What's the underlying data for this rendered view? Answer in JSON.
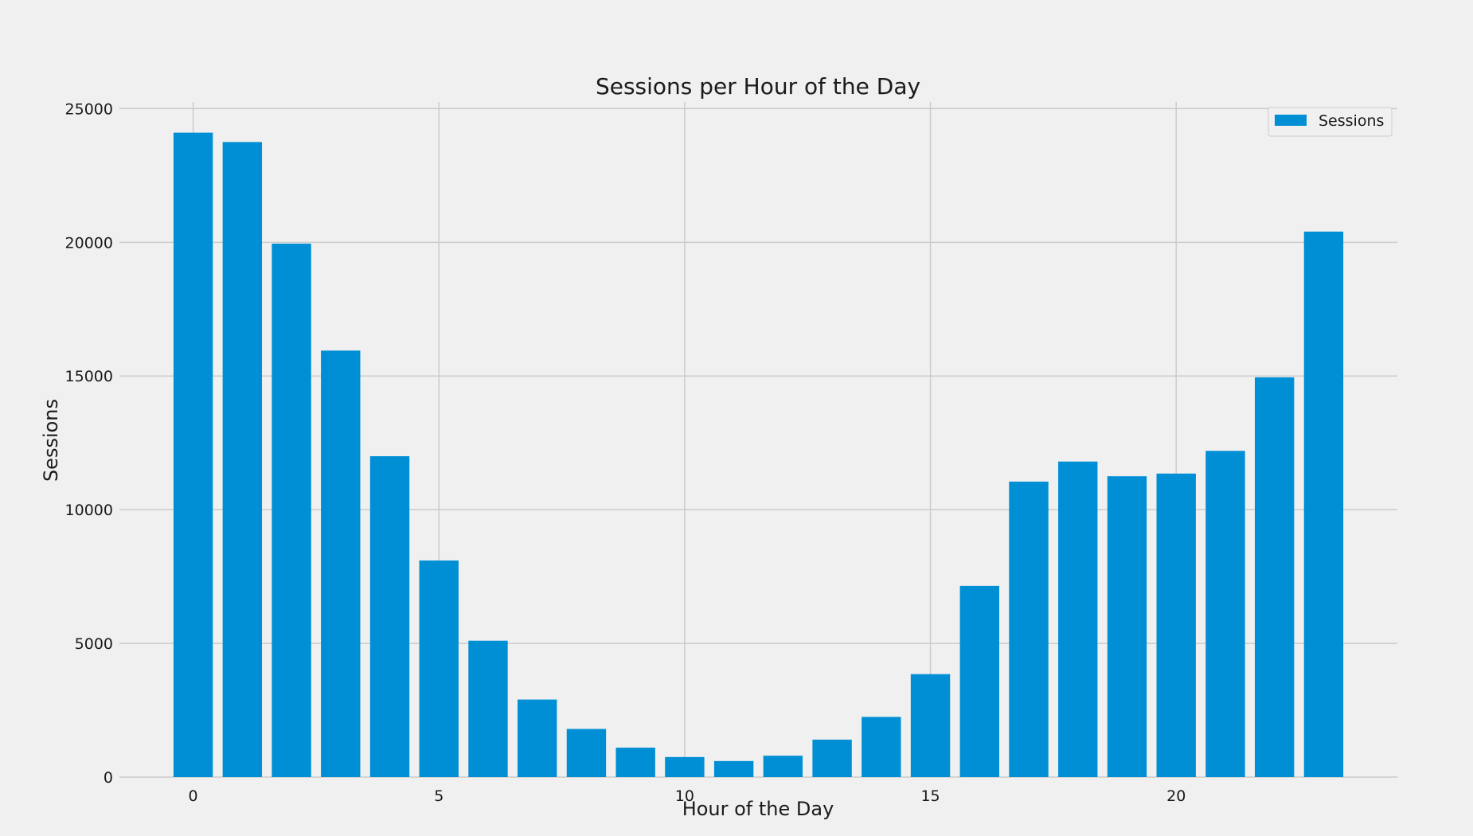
{
  "chart_data": {
    "type": "bar",
    "title": "Sessions per Hour of the Day",
    "xlabel": "Hour of the Day",
    "ylabel": "Sessions",
    "x": [
      0,
      1,
      2,
      3,
      4,
      5,
      6,
      7,
      8,
      9,
      10,
      11,
      12,
      13,
      14,
      15,
      16,
      17,
      18,
      19,
      20,
      21,
      22,
      23
    ],
    "series": [
      {
        "name": "Sessions",
        "color": "#008fd5",
        "values": [
          24100,
          23750,
          19950,
          15950,
          12000,
          8100,
          5100,
          2900,
          1800,
          1100,
          750,
          600,
          800,
          1400,
          2250,
          3850,
          7150,
          11050,
          11800,
          11250,
          11350,
          12200,
          14950,
          20400
        ]
      }
    ],
    "xticks": [
      0,
      5,
      10,
      15,
      20
    ],
    "yticks": [
      0,
      5000,
      10000,
      15000,
      20000,
      25000
    ],
    "xlim": [
      -1.5,
      24.5
    ],
    "ylim": [
      0,
      25250
    ],
    "grid": true,
    "legend_position": "top-right",
    "background": "#f0f0f0",
    "grid_color": "#cbcbcb"
  }
}
